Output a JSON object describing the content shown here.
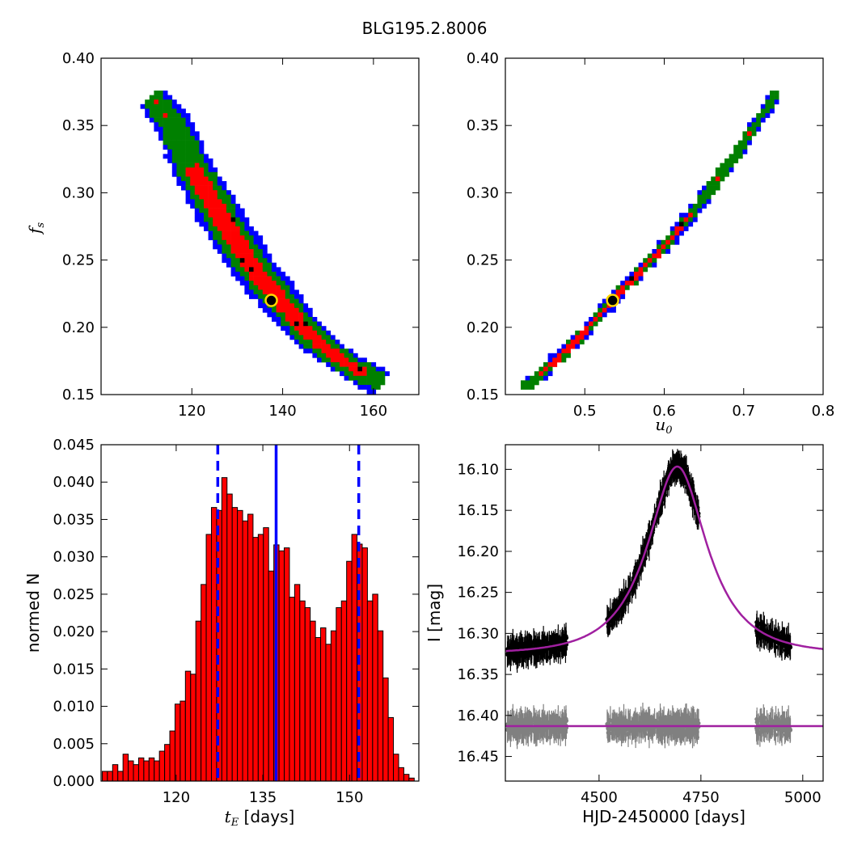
{
  "figure": {
    "title": "BLG195.2.8006"
  },
  "chart_data": [
    {
      "id": "p1",
      "type": "heatmap",
      "xlim": [
        100,
        170
      ],
      "ylim": [
        0.15,
        0.4
      ],
      "xticks": [
        120,
        140,
        160
      ],
      "yticks": [
        0.15,
        0.2,
        0.25,
        0.3,
        0.35,
        0.4
      ],
      "xlabel": "",
      "ylabel": "f",
      "ylabel_sub": "s",
      "band_centerline": [
        [
          111,
          0.372
        ],
        [
          116,
          0.35
        ],
        [
          120,
          0.32
        ],
        [
          125,
          0.29
        ],
        [
          130,
          0.262
        ],
        [
          135,
          0.238
        ],
        [
          140,
          0.218
        ],
        [
          145,
          0.198
        ],
        [
          150,
          0.183
        ],
        [
          155,
          0.171
        ],
        [
          160,
          0.162
        ],
        [
          162,
          0.158
        ]
      ],
      "marker": {
        "x": 137.5,
        "y": 0.22
      },
      "colors": {
        "outer": "#0000ff",
        "middle": "#008000",
        "inner": "#ff0000",
        "dots": "#000000",
        "marker_ring": "#ffd700"
      }
    },
    {
      "id": "p2",
      "type": "heatmap",
      "xlim": [
        0.4,
        0.8
      ],
      "ylim": [
        0.15,
        0.4
      ],
      "xticks": [
        0.5,
        0.6,
        0.7,
        0.8
      ],
      "yticks": [
        0.15,
        0.2,
        0.25,
        0.3,
        0.35,
        0.4
      ],
      "xlabel": "u",
      "xlabel_sub": "0",
      "ylabel": "",
      "band_centerline": [
        [
          0.425,
          0.155
        ],
        [
          0.45,
          0.168
        ],
        [
          0.5,
          0.196
        ],
        [
          0.535,
          0.22
        ],
        [
          0.6,
          0.26
        ],
        [
          0.65,
          0.296
        ],
        [
          0.7,
          0.337
        ],
        [
          0.74,
          0.373
        ]
      ],
      "marker": {
        "x": 0.535,
        "y": 0.22
      },
      "colors": {
        "outer": "#0000ff",
        "middle": "#008000",
        "inner": "#ff0000",
        "dots": "#000000",
        "marker_ring": "#ffd700"
      }
    },
    {
      "id": "p3",
      "type": "bar",
      "xlim": [
        107,
        162
      ],
      "ylim": [
        0,
        0.045
      ],
      "xticks": [
        120,
        135,
        150
      ],
      "yticks": [
        "0.000",
        "0.005",
        "0.010",
        "0.015",
        "0.020",
        "0.025",
        "0.030",
        "0.035",
        "0.040",
        "0.045"
      ],
      "xlabel": "t",
      "xlabel_sub": "E",
      "xlabel_rest": " [days]",
      "ylabel": "normed N",
      "bin_start": 107.2,
      "bin_width": 0.9,
      "values": [
        0.0013,
        0.0013,
        0.0022,
        0.0013,
        0.0036,
        0.0027,
        0.0022,
        0.0031,
        0.0027,
        0.0031,
        0.0027,
        0.004,
        0.0049,
        0.0067,
        0.0103,
        0.0107,
        0.0147,
        0.0143,
        0.0214,
        0.0263,
        0.033,
        0.0366,
        0.0362,
        0.0406,
        0.0384,
        0.0366,
        0.0362,
        0.0348,
        0.0357,
        0.0326,
        0.033,
        0.0339,
        0.0281,
        0.0316,
        0.0308,
        0.0312,
        0.0246,
        0.0263,
        0.0241,
        0.0232,
        0.0214,
        0.0192,
        0.0205,
        0.0183,
        0.0201,
        0.0232,
        0.0241,
        0.0294,
        0.033,
        0.0317,
        0.0312,
        0.0241,
        0.025,
        0.0201,
        0.0138,
        0.0085,
        0.0036,
        0.0018,
        0.0009,
        0.0004
      ],
      "vlines": {
        "solid": 137.3,
        "dashed": [
          127.2,
          151.6
        ]
      },
      "colors": {
        "bar": "#ff0000",
        "edge": "#000000",
        "vline": "#0000ff"
      }
    },
    {
      "id": "p4",
      "type": "scatter",
      "xlim": [
        4270,
        5050
      ],
      "ylim": [
        16.48,
        16.07
      ],
      "y_inverted": true,
      "xticks": [
        4500,
        4750,
        5000
      ],
      "yticks": [
        "16.10",
        "16.15",
        "16.20",
        "16.25",
        "16.30",
        "16.35",
        "16.40",
        "16.45"
      ],
      "xlabel": "HJD-2450000 [days]",
      "ylabel": "I [mag]",
      "model": {
        "t0": 4692,
        "tE": 137.3,
        "u0": 0.535,
        "fs": 0.22,
        "base_mag": 16.325
      },
      "residual_offset": 16.413,
      "data_segments": [
        [
          4275,
          4420,
          260
        ],
        [
          4520,
          4650,
          200
        ],
        [
          4650,
          4745,
          210
        ],
        [
          4885,
          4970,
          110
        ]
      ],
      "colors": {
        "data": "#000000",
        "residual": "#808080",
        "model": "#a020a0"
      }
    }
  ]
}
